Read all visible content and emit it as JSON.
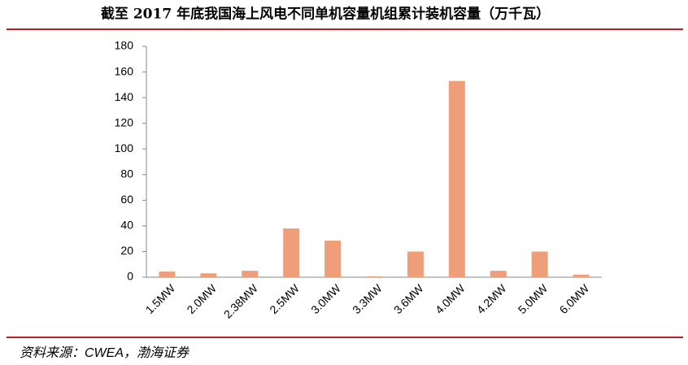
{
  "chart_data": {
    "type": "bar",
    "title": "截至 2017 年底我国海上风电不同单机容量机组累计装机容量（万千瓦）",
    "source": "资料来源：CWEA，渤海证券",
    "categories": [
      "1.5MW",
      "2.0MW",
      "2.38MW",
      "2.5MW",
      "3.0MW",
      "3.3MW",
      "3.6MW",
      "4.0MW",
      "4.2MW",
      "5.0MW",
      "6.0MW"
    ],
    "values": [
      4.4,
      3,
      5,
      38,
      28.5,
      0.6,
      20,
      153,
      5,
      20,
      2
    ],
    "color": "#ee9f7a",
    "ylim": [
      0,
      180
    ],
    "yticks": [
      0,
      20,
      40,
      60,
      80,
      100,
      120,
      140,
      160,
      180
    ],
    "grid": false
  }
}
